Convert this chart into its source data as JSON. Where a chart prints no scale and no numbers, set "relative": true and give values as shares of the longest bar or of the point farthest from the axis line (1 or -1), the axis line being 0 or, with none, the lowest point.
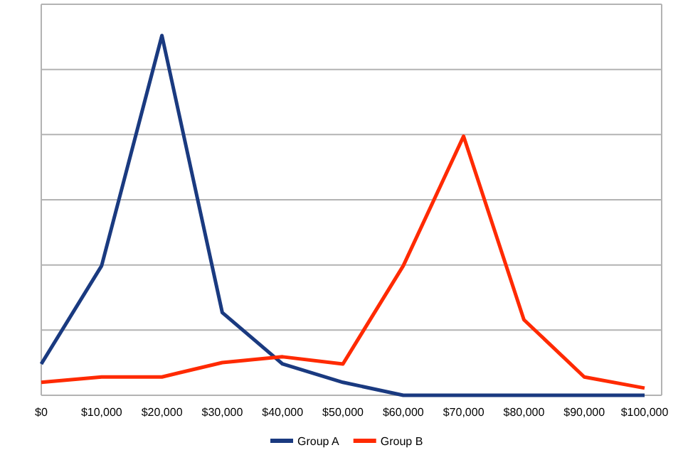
{
  "chart_data": {
    "type": "line",
    "relative": true,
    "categories": [
      "$0",
      "$10,000",
      "$20,000",
      "$30,000",
      "$40,000",
      "$50,000",
      "$60,000",
      "$70,000",
      "$80,000",
      "$90,000",
      "$100,000"
    ],
    "series": [
      {
        "name": "Group A",
        "color": "#1a3a80",
        "values": [
          0.087,
          0.36,
          1,
          0.23,
          0.087,
          0.036,
          0,
          0,
          0,
          0,
          0
        ]
      },
      {
        "name": "Group B",
        "color": "#ff2a00",
        "values": [
          0.036,
          0.051,
          0.051,
          0.091,
          0.107,
          0.087,
          0.36,
          0.72,
          0.21,
          0.051,
          0.02
        ]
      }
    ],
    "grid": true,
    "legend": "bottom",
    "marker": "none",
    "line_style": "solid"
  }
}
